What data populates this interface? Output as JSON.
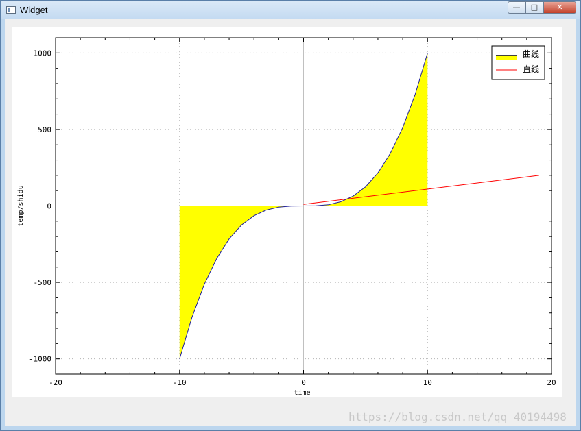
{
  "window": {
    "title": "Widget",
    "buttons": {
      "minimize": "—",
      "maximize": "□",
      "close": "✕"
    }
  },
  "watermark": "https://blog.csdn.net/qq_40194498",
  "colors": {
    "curve_fill": "#ffff00",
    "curve_line": "#1c1c9c",
    "line": "#ff0000"
  },
  "chart_data": {
    "type": "line",
    "title": "",
    "xlabel": "time",
    "ylabel": "temp/shidu",
    "xlim": [
      -20,
      20
    ],
    "ylim": [
      -1100,
      1100
    ],
    "xticks": [
      -20,
      -10,
      0,
      10,
      20
    ],
    "yticks": [
      -1000,
      -500,
      0,
      500,
      1000
    ],
    "grid": true,
    "legend_position": "top-right",
    "series": [
      {
        "name": "曲线",
        "style": "filled-curve",
        "x": [
          -10,
          -9,
          -8,
          -7,
          -6,
          -5,
          -4,
          -3,
          -2,
          -1,
          0,
          1,
          2,
          3,
          4,
          5,
          6,
          7,
          8,
          9,
          10
        ],
        "y": [
          -1000,
          -729,
          -512,
          -343,
          -216,
          -125,
          -64,
          -27,
          -8,
          -1,
          0,
          1,
          8,
          27,
          64,
          125,
          216,
          343,
          512,
          729,
          1000
        ]
      },
      {
        "name": "直线",
        "style": "line",
        "x": [
          0,
          19
        ],
        "y": [
          10,
          200
        ]
      }
    ]
  }
}
